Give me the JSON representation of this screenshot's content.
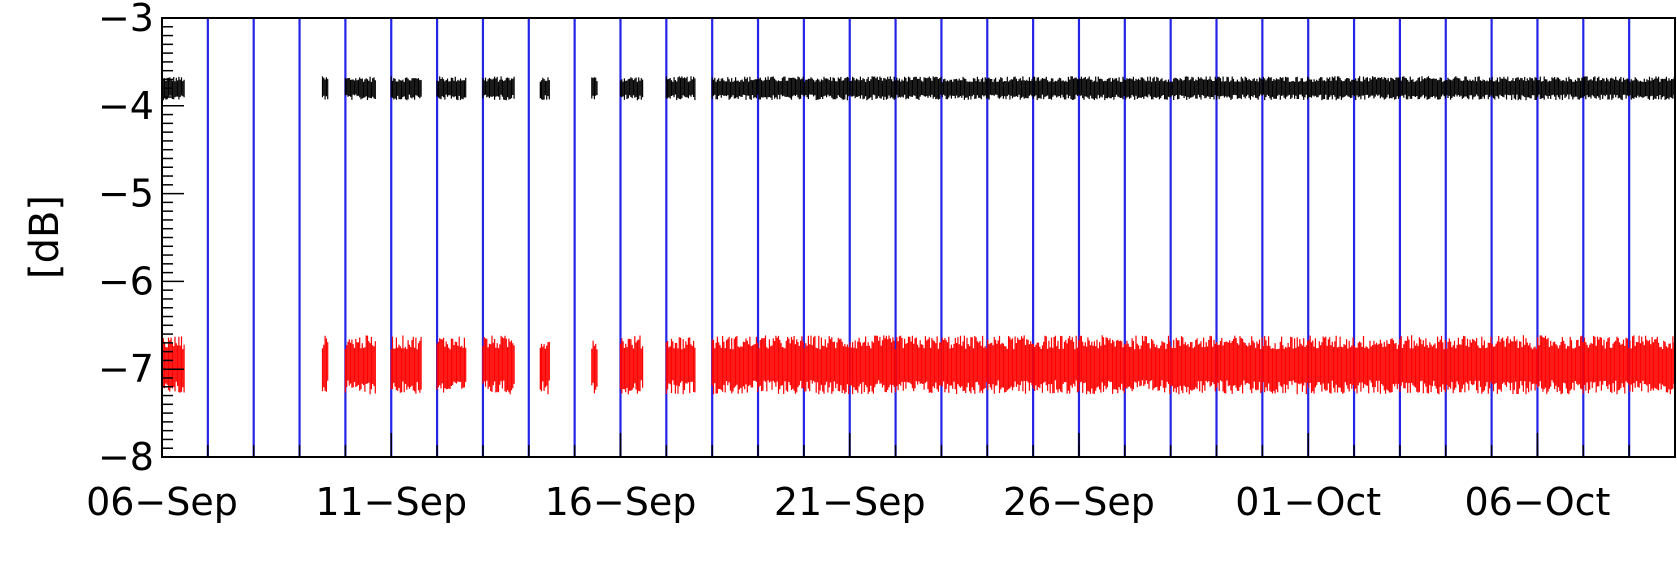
{
  "chart_data": {
    "type": "scatter",
    "title": "",
    "ylabel": "[dB]",
    "xlabel": "",
    "ylim": [
      -8,
      -3
    ],
    "yticks": [
      -8,
      -7,
      -6,
      -5,
      -4,
      -3
    ],
    "ytick_labels": [
      "−8",
      "−7",
      "−6",
      "−5",
      "−4",
      "−3"
    ],
    "xlim": [
      "2015-09-06T00:00",
      "2015-10-09T00:00"
    ],
    "xticks": [
      "2015-09-06",
      "2015-09-11",
      "2015-09-16",
      "2015-09-21",
      "2015-09-26",
      "2015-10-01",
      "2015-10-06"
    ],
    "xtick_labels": [
      "06−Sep",
      "11−Sep",
      "16−Sep",
      "21−Sep",
      "26−Sep",
      "01−Oct",
      "06−Oct"
    ],
    "vertical_markers": [
      "2015-09-07",
      "2015-09-08",
      "2015-09-09",
      "2015-09-10",
      "2015-09-11",
      "2015-09-12",
      "2015-09-13",
      "2015-09-14",
      "2015-09-15",
      "2015-09-16",
      "2015-09-17",
      "2015-09-18",
      "2015-09-19",
      "2015-09-20",
      "2015-09-21",
      "2015-09-22",
      "2015-09-23",
      "2015-09-24",
      "2015-09-25",
      "2015-09-26",
      "2015-09-27",
      "2015-09-28",
      "2015-09-29",
      "2015-09-30",
      "2015-10-01",
      "2015-10-02",
      "2015-10-03",
      "2015-10-04",
      "2015-10-05",
      "2015-10-06",
      "2015-10-07",
      "2015-10-08"
    ],
    "grid": false,
    "series": [
      {
        "color": "#000000",
        "center": -3.8,
        "spread": 0.13,
        "data_intervals": [
          [
            "2015-09-06T00:00",
            "2015-09-06T12:00"
          ],
          [
            "2015-09-09T12:00",
            "2015-09-09T15:00"
          ],
          [
            "2015-09-10T00:00",
            "2015-09-10T16:00"
          ],
          [
            "2015-09-11T00:00",
            "2015-09-11T16:00"
          ],
          [
            "2015-09-12T00:00",
            "2015-09-12T15:00"
          ],
          [
            "2015-09-13T00:00",
            "2015-09-13T17:00"
          ],
          [
            "2015-09-14T06:00",
            "2015-09-14T11:00"
          ],
          [
            "2015-09-15T09:00",
            "2015-09-15T12:00"
          ],
          [
            "2015-09-16T00:00",
            "2015-09-16T12:00"
          ],
          [
            "2015-09-17T00:00",
            "2015-09-17T15:00"
          ],
          [
            "2015-09-18T00:00",
            "2015-10-09T00:00"
          ]
        ]
      },
      {
        "color": "#ff0000",
        "center": -6.95,
        "spread": 0.32,
        "data_intervals": [
          [
            "2015-09-06T00:00",
            "2015-09-06T12:00"
          ],
          [
            "2015-09-09T12:00",
            "2015-09-09T15:00"
          ],
          [
            "2015-09-10T00:00",
            "2015-09-10T16:00"
          ],
          [
            "2015-09-11T00:00",
            "2015-09-11T16:00"
          ],
          [
            "2015-09-12T00:00",
            "2015-09-12T15:00"
          ],
          [
            "2015-09-13T00:00",
            "2015-09-13T17:00"
          ],
          [
            "2015-09-14T06:00",
            "2015-09-14T11:00"
          ],
          [
            "2015-09-15T09:00",
            "2015-09-15T12:00"
          ],
          [
            "2015-09-16T00:00",
            "2015-09-16T12:00"
          ],
          [
            "2015-09-17T00:00",
            "2015-09-17T15:00"
          ],
          [
            "2015-09-18T00:00",
            "2015-10-09T00:00"
          ]
        ]
      }
    ]
  }
}
